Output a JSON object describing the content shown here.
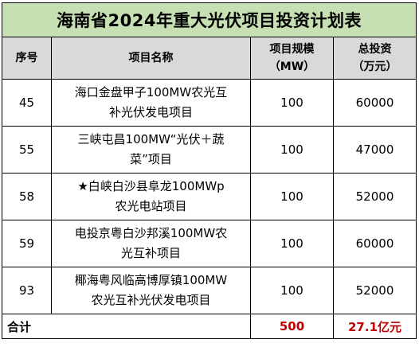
{
  "title": "海南省2024年重大光伏项目投资计划表",
  "headers": {
    "seq": "序号",
    "name": "项目名称",
    "scale_line1": "项目规模",
    "scale_line2": "（MW）",
    "invest_line1": "总投资",
    "invest_line2": "（万元）"
  },
  "rows": [
    {
      "seq": "45",
      "name_line1": "海口金盘甲子100MW农光互",
      "name_line2": "补光伏发电项目",
      "scale": "100",
      "investment": "60000"
    },
    {
      "seq": "55",
      "name_line1": "三峡屯昌100MW“光伏＋蔬",
      "name_line2": "菜”项目",
      "scale": "100",
      "investment": "47000"
    },
    {
      "seq": "58",
      "name_line1": "★白峡白沙县阜龙100MWp",
      "name_line2": "农光电站项目",
      "scale": "100",
      "investment": "52000"
    },
    {
      "seq": "59",
      "name_line1": "电投京粤白沙邦溪100MW农",
      "name_line2": "光互补项目",
      "scale": "100",
      "investment": "60000"
    },
    {
      "seq": "93",
      "name_line1": "椰海粤风临高博厚镇100MW",
      "name_line2": "农光互补光伏发电项目",
      "scale": "100",
      "investment": "52000"
    }
  ],
  "total": {
    "label": "合计",
    "scale": "500",
    "investment": "27.1亿元"
  },
  "colors": {
    "title_bg": "#c6e0b4",
    "header_bg": "#d9d9d9",
    "total_value": "#c00000"
  }
}
